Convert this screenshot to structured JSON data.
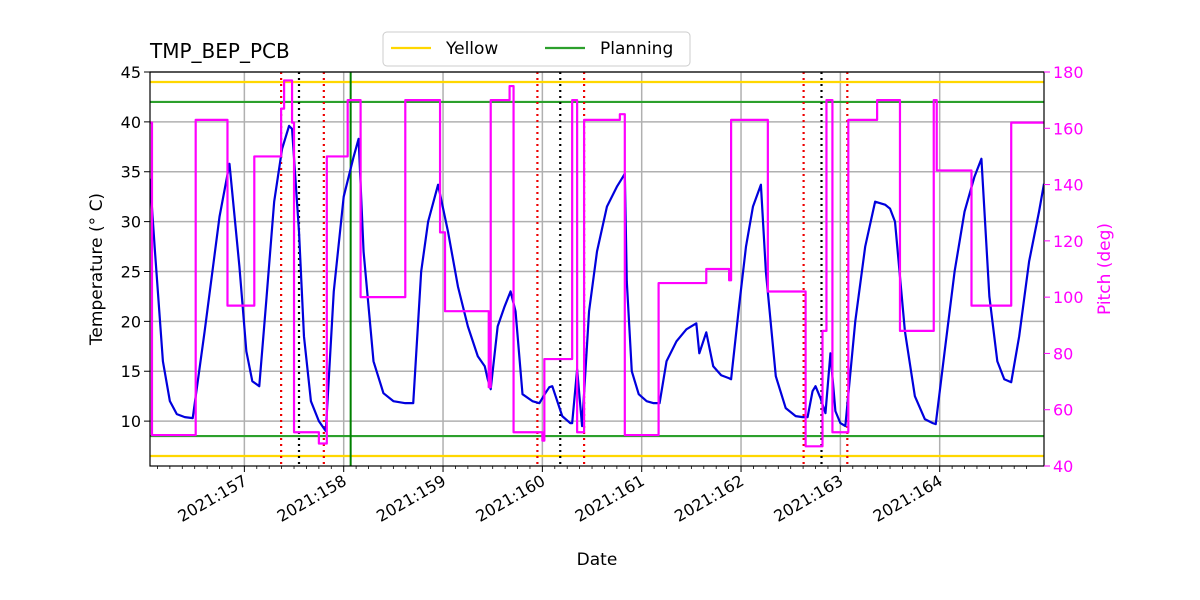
{
  "chart_data": {
    "type": "line",
    "title": "TMP_BEP_PCB",
    "xlabel": "Date",
    "ylabel": "Temperature ($^\\circ$C)",
    "ylabel_display": "Temperature (° C)",
    "y2label": "Pitch (deg)",
    "xlim": [
      156.05,
      165.05
    ],
    "ylim": [
      5.5,
      45
    ],
    "y2lim": [
      40,
      180
    ],
    "x_tick_values": [
      157,
      158,
      159,
      160,
      161,
      162,
      163,
      164
    ],
    "x_tick_labels": [
      "2021:157",
      "2021:158",
      "2021:159",
      "2021:160",
      "2021:161",
      "2021:162",
      "2021:163",
      "2021:164"
    ],
    "y_tick_values": [
      10,
      15,
      20,
      25,
      30,
      35,
      40,
      45
    ],
    "y_tick_labels": [
      "10",
      "15",
      "20",
      "25",
      "30",
      "35",
      "40",
      "45"
    ],
    "y2_tick_values": [
      40,
      60,
      80,
      100,
      120,
      140,
      160,
      180
    ],
    "y2_tick_labels": [
      "40",
      "60",
      "80",
      "100",
      "120",
      "140",
      "160",
      "180"
    ],
    "grid": true,
    "legend": {
      "placement": "top-center",
      "entries": [
        {
          "name": "Yellow",
          "color": "#ffd700"
        },
        {
          "name": "Planning",
          "color": "#2ca02c"
        }
      ]
    },
    "colors": {
      "temperature": "#0000dd",
      "pitch": "#ff00ff",
      "yellow": "#ffd700",
      "planning": "#2ca02c",
      "red_markers": "#ee0000",
      "black_markers": "#000000",
      "grid": "#b0b0b0"
    },
    "hlines": [
      {
        "name": "Yellow",
        "y": 44.0,
        "color": "#ffd700"
      },
      {
        "name": "Yellow",
        "y": 6.5,
        "color": "#ffd700"
      },
      {
        "name": "Planning",
        "y": 42.0,
        "color": "#2ca02c"
      },
      {
        "name": "Planning",
        "y": 8.5,
        "color": "#2ca02c"
      }
    ],
    "vline_now": {
      "x": 158.07,
      "color": "#008000"
    },
    "red_dotted_vlines": [
      157.37,
      157.8,
      159.95,
      160.42,
      162.63,
      163.07
    ],
    "black_dotted_vlines": [
      157.55,
      160.18,
      162.81
    ],
    "series": [
      {
        "name": "",
        "axis": "left",
        "color": "#0000dd",
        "x": [
          156.05,
          156.1,
          156.18,
          156.25,
          156.32,
          156.4,
          156.48,
          156.6,
          156.75,
          156.85,
          156.95,
          157.02,
          157.08,
          157.15,
          157.22,
          157.3,
          157.38,
          157.45,
          157.48,
          157.55,
          157.6,
          157.67,
          157.75,
          157.82,
          157.9,
          158.0,
          158.1,
          158.15,
          158.2,
          158.3,
          158.4,
          158.5,
          158.62,
          158.7,
          158.78,
          158.85,
          158.95,
          159.05,
          159.15,
          159.25,
          159.35,
          159.42,
          159.45,
          159.48,
          159.55,
          159.62,
          159.68,
          159.73,
          159.8,
          159.9,
          159.97,
          160.03,
          160.07,
          160.1,
          160.2,
          160.28,
          160.3,
          160.35,
          160.4,
          160.47,
          160.55,
          160.65,
          160.75,
          160.8,
          160.83,
          160.85,
          160.9,
          160.97,
          161.05,
          161.12,
          161.18,
          161.25,
          161.35,
          161.45,
          161.55,
          161.58,
          161.65,
          161.72,
          161.8,
          161.88,
          161.9,
          161.98,
          162.05,
          162.12,
          162.2,
          162.25,
          162.35,
          162.45,
          162.55,
          162.62,
          162.67,
          162.72,
          162.75,
          162.8,
          162.85,
          162.9,
          162.95,
          163.0,
          163.05,
          163.15,
          163.25,
          163.35,
          163.45,
          163.5,
          163.55,
          163.65,
          163.75,
          163.85,
          163.93,
          163.96,
          164.05,
          164.15,
          164.25,
          164.35,
          164.42,
          164.5,
          164.58,
          164.65,
          164.72,
          164.8,
          164.9,
          165.0,
          165.05
        ],
        "y": [
          34.3,
          27.0,
          16.0,
          12.0,
          10.7,
          10.4,
          10.3,
          19.0,
          30.5,
          35.8,
          25.5,
          17.0,
          14.0,
          13.5,
          22.0,
          32.0,
          37.3,
          39.6,
          39.3,
          29.0,
          18.5,
          12.0,
          10.0,
          9.0,
          23.0,
          32.5,
          36.5,
          38.3,
          27.0,
          16.0,
          12.8,
          12.0,
          11.8,
          11.8,
          25.0,
          30.0,
          33.7,
          29.0,
          23.5,
          19.5,
          16.5,
          15.5,
          14.2,
          13.2,
          19.5,
          21.5,
          23.0,
          21.0,
          12.7,
          12.0,
          11.8,
          12.8,
          13.4,
          13.5,
          10.5,
          9.8,
          9.8,
          15.2,
          9.5,
          21.0,
          27.0,
          31.5,
          33.5,
          34.3,
          34.8,
          24.0,
          15.0,
          12.7,
          12.0,
          11.8,
          11.8,
          16.0,
          18.0,
          19.2,
          19.8,
          16.8,
          18.9,
          15.5,
          14.6,
          14.3,
          14.2,
          21.5,
          27.5,
          31.5,
          33.7,
          25.0,
          14.5,
          11.3,
          10.5,
          10.4,
          10.4,
          13.0,
          13.5,
          12.3,
          10.8,
          16.8,
          11.0,
          9.8,
          9.5,
          20.0,
          27.5,
          32.0,
          31.7,
          31.3,
          30.0,
          19.0,
          12.5,
          10.2,
          9.8,
          9.7,
          17.0,
          25.0,
          31.0,
          34.5,
          36.3,
          22.5,
          16.0,
          14.2,
          13.9,
          18.5,
          26.0,
          31.0,
          33.8
        ]
      },
      {
        "name": "",
        "axis": "right",
        "color": "#ff00ff",
        "step": true,
        "x": [
          156.05,
          156.07,
          156.1,
          156.5,
          156.51,
          156.82,
          156.83,
          157.08,
          157.1,
          157.35,
          157.37,
          157.4,
          157.45,
          157.48,
          157.5,
          157.52,
          157.72,
          157.75,
          157.82,
          157.83,
          158.02,
          158.04,
          158.15,
          158.17,
          158.55,
          158.6,
          158.62,
          158.96,
          158.97,
          159.0,
          159.02,
          159.42,
          159.45,
          159.46,
          159.48,
          159.65,
          159.67,
          159.7,
          159.71,
          159.98,
          160.0,
          160.02,
          160.28,
          160.3,
          160.32,
          160.35,
          160.38,
          160.42,
          160.76,
          160.78,
          160.82,
          160.83,
          161.15,
          161.17,
          161.5,
          161.55,
          161.65,
          161.67,
          161.88,
          161.9,
          162.25,
          162.27,
          162.62,
          162.65,
          162.82,
          162.84,
          162.86,
          162.9,
          162.92,
          163.05,
          163.08,
          163.35,
          163.37,
          163.5,
          163.52,
          163.57,
          163.6,
          163.92,
          163.94,
          163.97,
          163.98,
          164.3,
          164.32,
          164.7,
          164.72,
          165.05
        ],
        "y": [
          162,
          51,
          51,
          51,
          163,
          163,
          97,
          97,
          150,
          150,
          167,
          177,
          177,
          162,
          52,
          52,
          52,
          48,
          48,
          150,
          150,
          170,
          170,
          100,
          100,
          100,
          170,
          170,
          123,
          123,
          95,
          95,
          95,
          68,
          170,
          170,
          175,
          175,
          52,
          52,
          49,
          78,
          78,
          170,
          170,
          52,
          52,
          163,
          163,
          165,
          165,
          51,
          51,
          105,
          105,
          105,
          110,
          110,
          106,
          163,
          163,
          102,
          102,
          47,
          88,
          88,
          170,
          170,
          52,
          52,
          163,
          163,
          170,
          170,
          170,
          170,
          88,
          88,
          170,
          145,
          145,
          145,
          97,
          97,
          162,
          162
        ]
      }
    ]
  }
}
